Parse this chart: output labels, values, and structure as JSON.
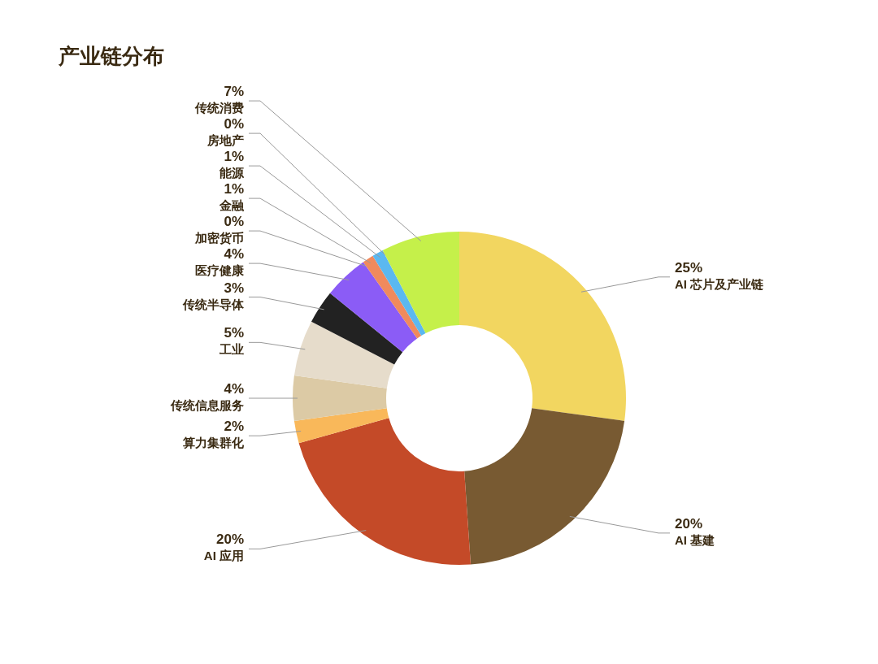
{
  "chart_data": {
    "type": "donut",
    "title": "产业链分布",
    "categories": [
      "AI 芯片及产业链",
      "AI 基建",
      "AI 应用",
      "算力集群化",
      "传统信息服务",
      "工业",
      "传统半导体",
      "医疗健康",
      "加密货币",
      "金融",
      "能源",
      "房地产",
      "传统消费"
    ],
    "values": [
      25,
      20,
      20,
      2,
      4,
      5,
      3,
      4,
      0,
      1,
      1,
      0,
      7
    ],
    "colors": [
      "#f2d660",
      "#785a32",
      "#c44a28",
      "#f9b85a",
      "#dccaa5",
      "#e6dccb",
      "#222222",
      "#8b5cf6",
      "#e8845a",
      "#f08a5d",
      "#5bb8f0",
      "#a0d8f0",
      "#c5f04a"
    ],
    "value_labels": [
      "25%",
      "20%",
      "20%",
      "2%",
      "4%",
      "5%",
      "3%",
      "4%",
      "0%",
      "1%",
      "1%",
      "0%",
      "7%"
    ]
  }
}
